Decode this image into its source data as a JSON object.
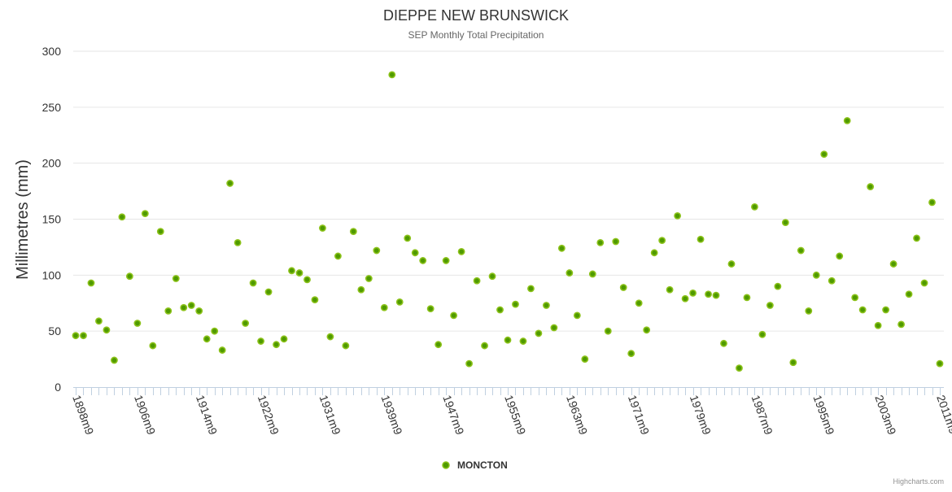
{
  "chart_data": {
    "type": "scatter",
    "title": "DIEPPE NEW BRUNSWICK",
    "subtitle": "SEP Monthly Total Precipitation",
    "ylabel": "Millimetres (mm)",
    "xlabel": "",
    "ylim": [
      0,
      300
    ],
    "yticks": [
      0,
      50,
      100,
      150,
      200,
      250,
      300
    ],
    "grid": true,
    "legend_position": "bottom-center",
    "x_tick_every": 8,
    "x_tick_labels": [
      "1898m9",
      "1906m9",
      "1914m9",
      "1922m9",
      "1931m9",
      "1939m9",
      "1947m9",
      "1955m9",
      "1963m9",
      "1971m9",
      "1979m9",
      "1987m9",
      "1995m9",
      "2003m9",
      "2011m9"
    ],
    "series": [
      {
        "name": "MONCTON",
        "color": "#5a9e00",
        "values": [
          46,
          46,
          93,
          59,
          51,
          24,
          152,
          99,
          57,
          155,
          37,
          139,
          68,
          97,
          71,
          73,
          68,
          43,
          50,
          33,
          182,
          129,
          57,
          93,
          41,
          85,
          38,
          43,
          104,
          102,
          96,
          78,
          142,
          45,
          117,
          37,
          139,
          87,
          97,
          122,
          71,
          279,
          76,
          133,
          120,
          113,
          70,
          38,
          113,
          64,
          121,
          21,
          95,
          37,
          99,
          69,
          42,
          74,
          41,
          88,
          48,
          73,
          53,
          124,
          102,
          64,
          25,
          101,
          129,
          50,
          130,
          89,
          30,
          75,
          51,
          120,
          131,
          87,
          153,
          79,
          84,
          132,
          83,
          82,
          39,
          110,
          17,
          80,
          161,
          47,
          73,
          90,
          147,
          22,
          122,
          68,
          100,
          208,
          95,
          117,
          238,
          80,
          69,
          179,
          55,
          69,
          110,
          56,
          83,
          133,
          93,
          165,
          21
        ]
      }
    ],
    "credits": "Highcharts.com"
  }
}
